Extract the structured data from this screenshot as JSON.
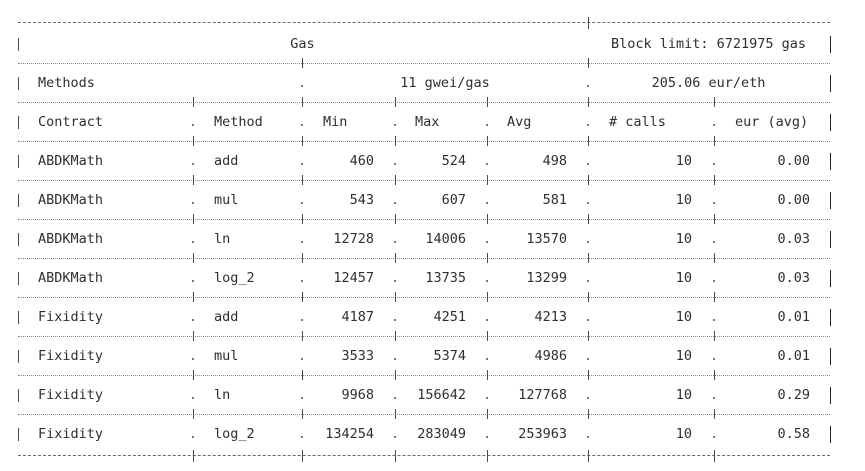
{
  "table": {
    "title": "Gas",
    "block_limit": "Block limit: 6721975 gas",
    "methods_label": "Methods",
    "gas_price": "11 gwei/gas",
    "eth_price": "205.06 eur/eth",
    "headers": {
      "contract": "Contract",
      "method": "Method",
      "min": "Min",
      "max": "Max",
      "avg": "Avg",
      "calls": "# calls",
      "eur": "eur (avg)"
    },
    "rows": [
      {
        "contract": "ABDKMath",
        "method": "add",
        "min": "460",
        "max": "524",
        "avg": "498",
        "calls": "10",
        "eur": "0.00"
      },
      {
        "contract": "ABDKMath",
        "method": "mul",
        "min": "543",
        "max": "607",
        "avg": "581",
        "calls": "10",
        "eur": "0.00"
      },
      {
        "contract": "ABDKMath",
        "method": "ln",
        "min": "12728",
        "max": "14006",
        "avg": "13570",
        "calls": "10",
        "eur": "0.03"
      },
      {
        "contract": "ABDKMath",
        "method": "log_2",
        "min": "12457",
        "max": "13735",
        "avg": "13299",
        "calls": "10",
        "eur": "0.03"
      },
      {
        "contract": "Fixidity",
        "method": "add",
        "min": "4187",
        "max": "4251",
        "avg": "4213",
        "calls": "10",
        "eur": "0.01"
      },
      {
        "contract": "Fixidity",
        "method": "mul",
        "min": "3533",
        "max": "5374",
        "avg": "4986",
        "calls": "10",
        "eur": "0.01"
      },
      {
        "contract": "Fixidity",
        "method": "ln",
        "min": "9968",
        "max": "156642",
        "avg": "127768",
        "calls": "10",
        "eur": "0.29"
      },
      {
        "contract": "Fixidity",
        "method": "log_2",
        "min": "134254",
        "max": "283049",
        "avg": "253963",
        "calls": "10",
        "eur": "0.58"
      }
    ]
  }
}
